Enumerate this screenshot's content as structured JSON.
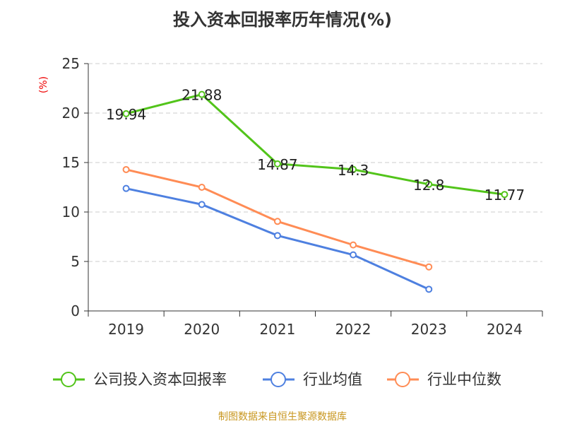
{
  "chart_data": {
    "type": "line",
    "title": "投入资本回报率历年情况(%)",
    "ylabel": "(%)",
    "categories": [
      "2019",
      "2020",
      "2021",
      "2022",
      "2023",
      "2024"
    ],
    "ylim": [
      0,
      25
    ],
    "yticks": [
      0,
      5,
      10,
      15,
      20,
      25
    ],
    "grid": true,
    "legend_position": "bottom",
    "series": [
      {
        "name": "公司投入资本回报率",
        "color": "#52c41a",
        "values": [
          19.94,
          21.88,
          14.87,
          14.3,
          12.8,
          11.77
        ],
        "labels": [
          "19.94",
          "21.88",
          "14.87",
          "14.3",
          "12.8",
          "11.77"
        ]
      },
      {
        "name": "行业均值",
        "color": "#4e80e0",
        "values": [
          12.38,
          10.76,
          7.62,
          5.67,
          2.19,
          null
        ]
      },
      {
        "name": "行业中位数",
        "color": "#ff8c55",
        "values": [
          14.29,
          12.5,
          9.05,
          6.67,
          4.45,
          null
        ]
      }
    ]
  },
  "source": "制图数据来自恒生聚源数据库"
}
